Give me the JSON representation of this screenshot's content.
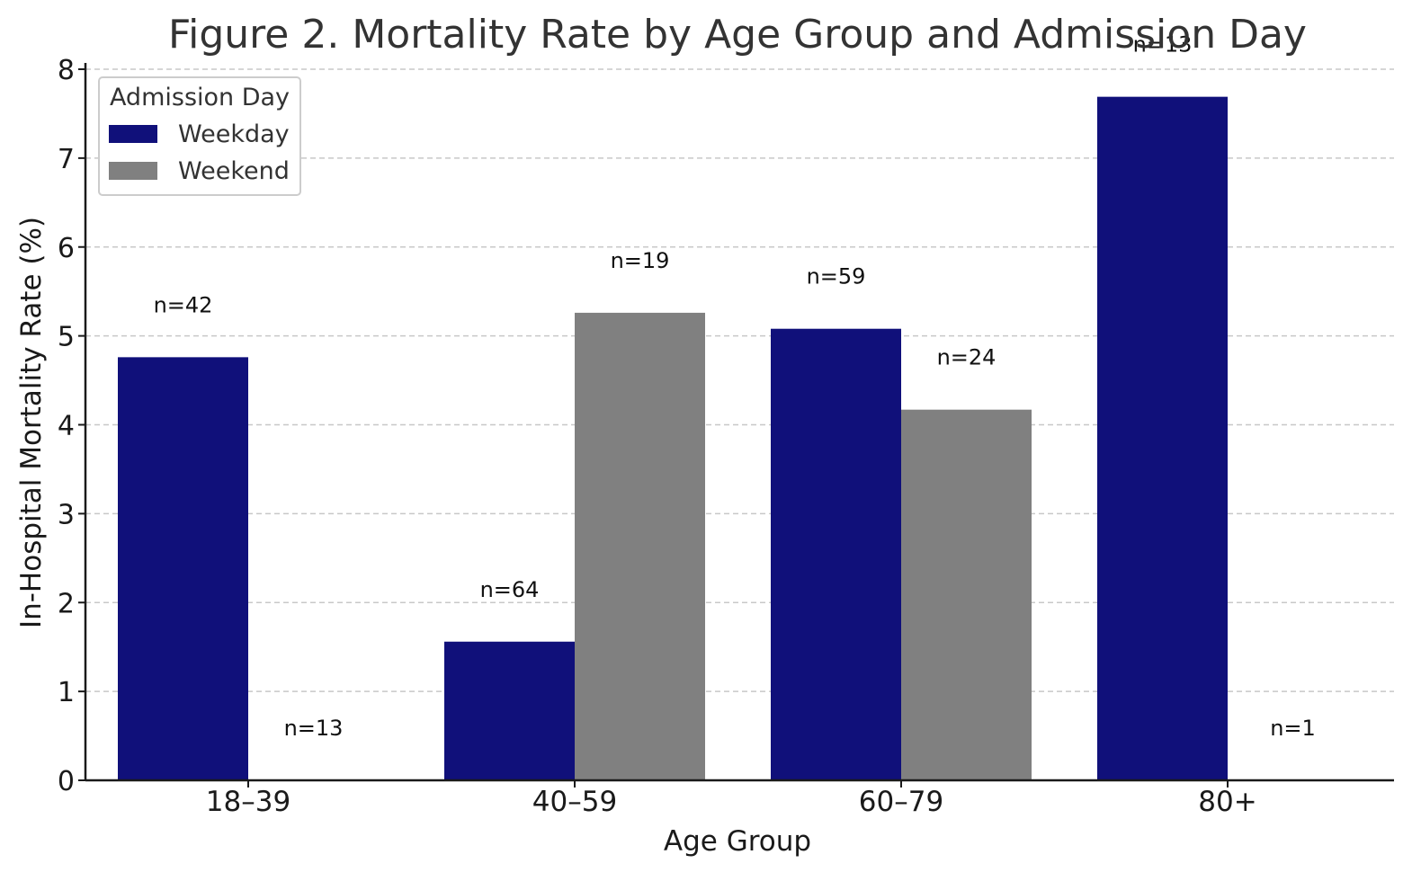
{
  "chart_data": {
    "type": "bar",
    "title": "Figure 2. Mortality Rate by Age Group and Admission Day",
    "xlabel": "Age Group",
    "ylabel": "In-Hospital Mortality Rate (%)",
    "categories": [
      "18–39",
      "40–59",
      "60–79",
      "80+"
    ],
    "series": [
      {
        "name": "Weekday",
        "color": "#10107a",
        "values": [
          4.76,
          1.56,
          5.08,
          7.69
        ],
        "n_labels": [
          "n=42",
          "n=64",
          "n=59",
          "n=13"
        ]
      },
      {
        "name": "Weekend",
        "color": "#808080",
        "values": [
          0,
          5.26,
          4.17,
          0
        ],
        "n_labels": [
          "n=13",
          "n=19",
          "n=24",
          "n=1"
        ]
      }
    ],
    "ylim": [
      0,
      8
    ],
    "yticks": [
      "0",
      "1",
      "2",
      "3",
      "4",
      "5",
      "6",
      "7",
      "8"
    ],
    "grid": true,
    "legend_title": "Admission Day",
    "legend_position": "top-left"
  }
}
